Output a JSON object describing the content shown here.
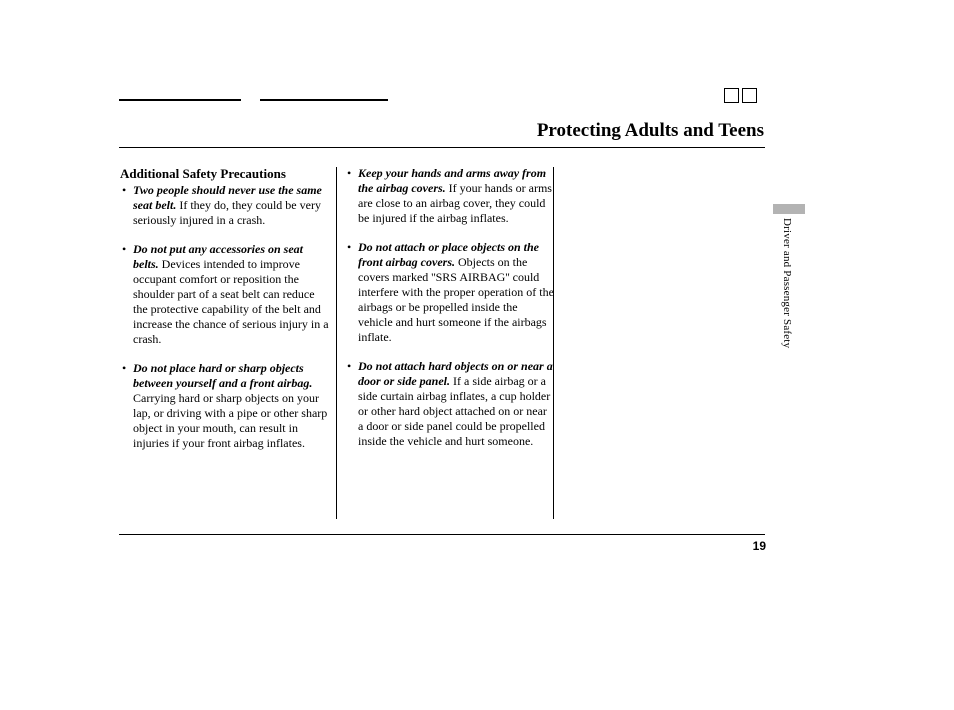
{
  "page": {
    "title": "Protecting Adults and Teens",
    "side_tab": "Driver and Passenger Safety",
    "page_number": "19"
  },
  "section_heading": "Additional Safety Precautions",
  "col1_items": [
    {
      "lead": "Two people should never use the same seat belt.",
      "body": " If they do, they could be very seriously injured in a crash."
    },
    {
      "lead": "Do not put any accessories on seat belts.",
      "body": " Devices intended to improve occupant comfort or reposition the shoulder part of a seat belt can reduce the protective capability of the belt and increase the chance of serious injury in a crash."
    },
    {
      "lead": "Do not place hard or sharp objects between yourself and a front airbag.",
      "body": " Carrying hard or sharp objects on your lap, or driving with a pipe or other sharp object in your mouth, can result in injuries if your front airbag inflates."
    }
  ],
  "col2_items": [
    {
      "lead": "Keep your hands and arms away from the airbag covers.",
      "body": " If your hands or arms are close to an airbag cover, they could be injured if the airbag inflates."
    },
    {
      "lead": "Do not attach or place objects on the front airbag covers.",
      "body": " Objects on the covers marked ''SRS AIRBAG'' could interfere with the proper operation of the airbags or be propelled inside the vehicle and hurt someone if the airbags inflate."
    },
    {
      "lead": "Do not attach hard objects on or near a door or side panel.",
      "body": "  If a side airbag or a side curtain airbag inflates, a cup holder or other hard object attached on or near a door or side panel could be propelled inside the vehicle and hurt someone."
    }
  ]
}
